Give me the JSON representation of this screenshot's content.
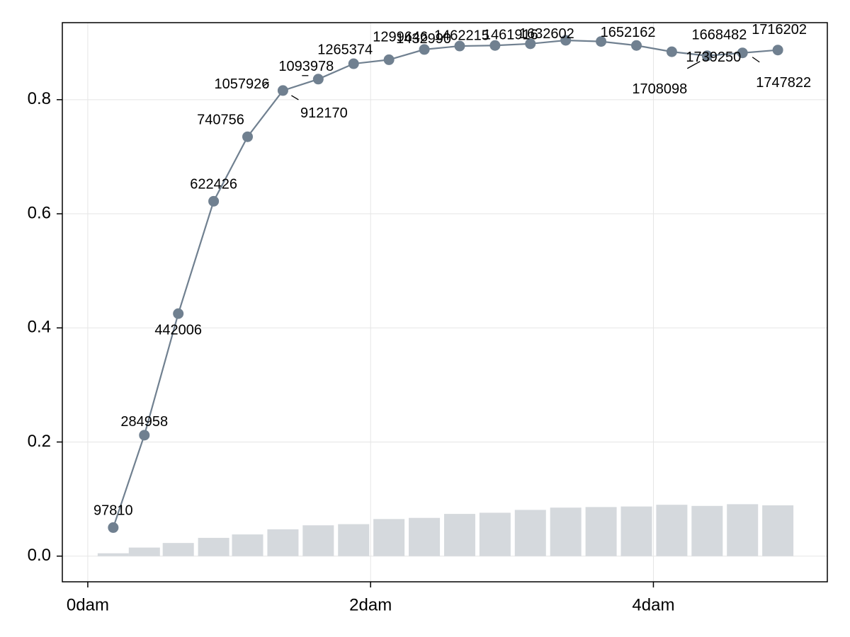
{
  "chart_data": {
    "type": "line",
    "title": "",
    "xlabel": "",
    "ylabel": "",
    "x_unit": "dam",
    "xlim": [
      -0.18,
      5.23
    ],
    "ylim": [
      -0.045,
      0.935
    ],
    "grid": true,
    "x_ticks": [
      0,
      2,
      4
    ],
    "x_tick_labels": [
      "0dam",
      "2dam",
      "4dam"
    ],
    "y_ticks": [
      0.0,
      0.2,
      0.4,
      0.6,
      0.8
    ],
    "y_tick_labels": [
      "0.0",
      "0.2",
      "0.4",
      "0.6",
      "0.8"
    ],
    "colors": {
      "line": "#708090",
      "bar": "#d5d9dd",
      "grid": "#e5e5e5",
      "frame": "#000000"
    },
    "series": [
      {
        "name": "line",
        "type": "line",
        "x": [
          0.18,
          0.4,
          0.64,
          0.89,
          1.13,
          1.38,
          1.63,
          1.88,
          2.13,
          2.38,
          2.63,
          2.88,
          3.13,
          3.38,
          3.63,
          3.88,
          4.13,
          4.38,
          4.63,
          4.88
        ],
        "values": [
          0.05,
          0.212,
          0.425,
          0.622,
          0.735,
          0.816,
          0.836,
          0.863,
          0.87,
          0.888,
          0.894,
          0.895,
          0.898,
          0.904,
          0.902,
          0.895,
          0.884,
          0.877,
          0.882,
          0.887
        ],
        "labels": [
          "97810",
          "284958",
          "442006",
          "622426",
          "740756",
          "1057926",
          "1093978",
          "1265374",
          "1299646",
          "1432990",
          "1462215",
          "1461916",
          "1632602",
          "1652162",
          "1668482",
          "1708098",
          "1739250",
          "1747822",
          "1716202",
          "912170"
        ],
        "point_labels": [
          {
            "text": "97810",
            "point": 0
          },
          {
            "text": "284958",
            "point": 1
          },
          {
            "text": "442006",
            "point": 2
          },
          {
            "text": "622426",
            "point": 3
          },
          {
            "text": "740756",
            "point": 4
          },
          {
            "text": "1057926",
            "point": 5
          },
          {
            "text": "912170",
            "point": 5
          },
          {
            "text": "1093978",
            "point": 6
          },
          {
            "text": "1265374",
            "point": 7
          },
          {
            "text": "1299646",
            "point": 8
          },
          {
            "text": "1432990",
            "point": 9
          },
          {
            "text": "1462215",
            "point": 10
          },
          {
            "text": "1461916",
            "point": 11
          },
          {
            "text": "1632602",
            "point": 12
          },
          {
            "text": "1652162",
            "point": 14
          },
          {
            "text": "1668482",
            "point": 16
          },
          {
            "text": "1708098",
            "point": 17
          },
          {
            "text": "1739250",
            "point": 17
          },
          {
            "text": "1747822",
            "point": 18
          },
          {
            "text": "1716202",
            "point": 19
          }
        ]
      },
      {
        "name": "bars",
        "type": "bar",
        "x": [
          0.18,
          0.4,
          0.64,
          0.89,
          1.13,
          1.38,
          1.63,
          1.88,
          2.13,
          2.38,
          2.63,
          2.88,
          3.13,
          3.38,
          3.63,
          3.88,
          4.13,
          4.38,
          4.63,
          4.88
        ],
        "values": [
          0.005,
          0.015,
          0.023,
          0.032,
          0.038,
          0.047,
          0.054,
          0.056,
          0.065,
          0.067,
          0.074,
          0.076,
          0.081,
          0.085,
          0.086,
          0.087,
          0.09,
          0.088,
          0.091,
          0.089
        ]
      }
    ]
  }
}
